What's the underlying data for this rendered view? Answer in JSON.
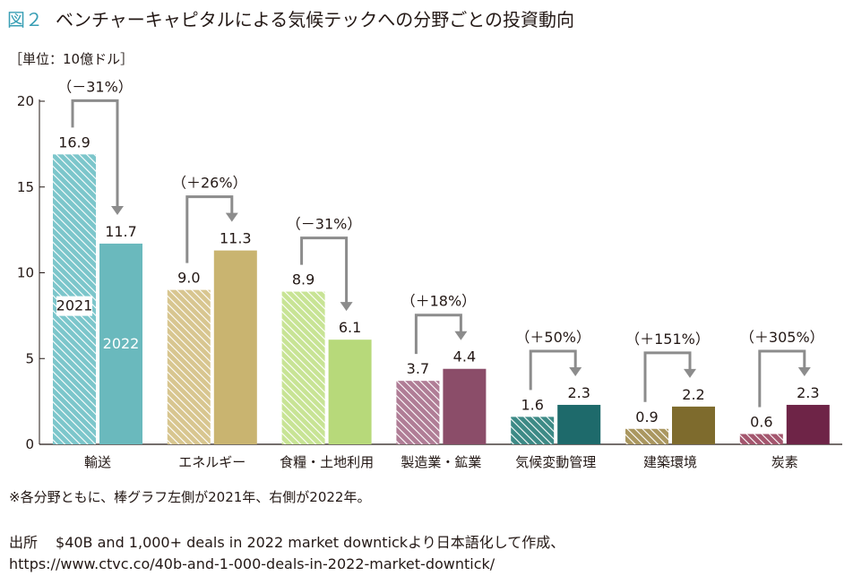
{
  "figure": {
    "number": "図２",
    "title": "ベンチャーキャピタルによる気候テックへの分野ごとの投資動向",
    "unit": "［単位：10億ドル］",
    "footnote": "※各分野ともに、棒グラフ左側が2021年、右側が2022年。",
    "source_label": "出所",
    "source_text": "$40B and 1,000+ deals in 2022 market downtickより日本語化して作成、",
    "source_url": "https://www.ctvc.co/40b-and-1-000-deals-in-2022-market-downtick/"
  },
  "chart_data": {
    "type": "bar",
    "categories": [
      "輸送",
      "エネルギー",
      "食糧・土地利用",
      "製造業・鉱業",
      "気候変動管理",
      "建築環境",
      "炭素"
    ],
    "series": [
      {
        "name": "2021",
        "values": [
          16.9,
          9.0,
          8.9,
          3.7,
          1.6,
          0.9,
          0.6
        ]
      },
      {
        "name": "2022",
        "values": [
          11.7,
          11.3,
          6.1,
          4.4,
          2.3,
          2.2,
          2.3
        ]
      }
    ],
    "value_labels_2021": [
      "16.9",
      "9.0",
      "8.9",
      "3.7",
      "1.6",
      "0.9",
      "0.6"
    ],
    "value_labels_2022": [
      "11.7",
      "11.3",
      "6.1",
      "4.4",
      "2.3",
      "2.2",
      "2.3"
    ],
    "changes": [
      "（－31%）",
      "（＋26%）",
      "（－31%）",
      "（＋18%）",
      "（＋50%）",
      "（＋151%）",
      "（＋305%）"
    ],
    "colors_2021": [
      "#7cc6cb",
      "#d8c690",
      "#c8e495",
      "#b07d96",
      "#3d8a86",
      "#aa9760",
      "#a4566e"
    ],
    "colors_2022": [
      "#6ab9bd",
      "#c9b470",
      "#b7d97a",
      "#8b4d69",
      "#1e6a6b",
      "#7e6b2d",
      "#6e2447"
    ],
    "ylim": [
      0,
      20
    ],
    "yticks": [
      0,
      5,
      10,
      15,
      20
    ],
    "left_bar_style": "hatched",
    "xlabel": "",
    "ylabel": ""
  }
}
